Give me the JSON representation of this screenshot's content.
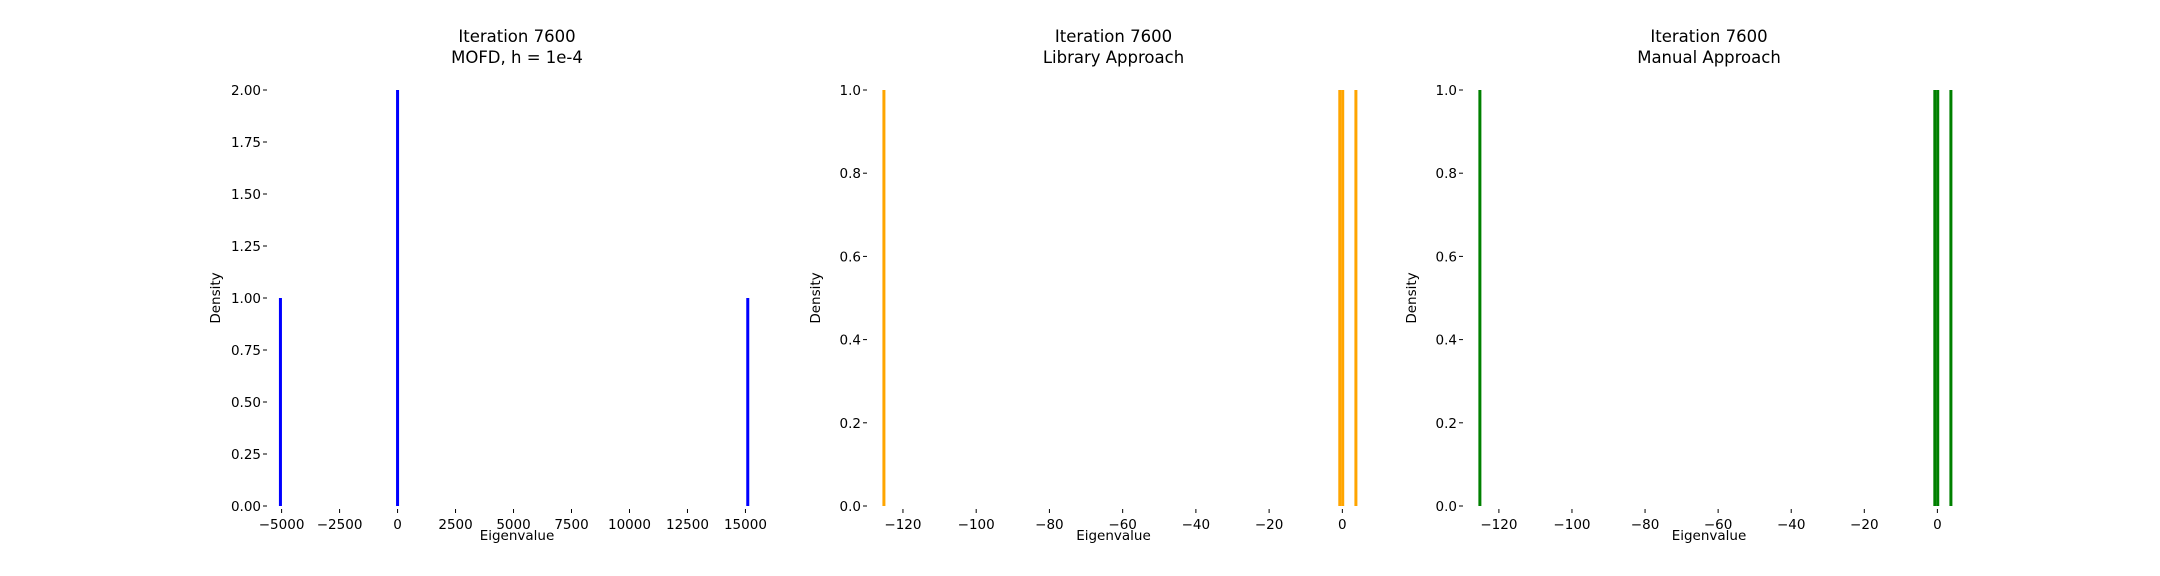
{
  "figure": {
    "background": "#ffffff"
  },
  "chart_data": [
    {
      "type": "bar",
      "title": "Iteration 7600",
      "subtitle": "MOFD, h = 1e-4",
      "xlabel": "Eigenvalue",
      "ylabel": "Density",
      "xlim": [
        -5500,
        15800
      ],
      "ylim": [
        0,
        2.0
      ],
      "xticks": [
        -5000,
        -2500,
        0,
        2500,
        5000,
        7500,
        10000,
        12500,
        15000
      ],
      "xtick_labels": [
        "−5000",
        "−2500",
        "0",
        "2500",
        "5000",
        "7500",
        "10000",
        "12500",
        "15000"
      ],
      "yticks": [
        0,
        0.25,
        0.5,
        0.75,
        1.0,
        1.25,
        1.5,
        1.75,
        2.0
      ],
      "ytick_labels": [
        "0.00",
        "0.25",
        "0.50",
        "0.75",
        "1.00",
        "1.25",
        "1.50",
        "1.75",
        "2.00"
      ],
      "color": "#0000ff",
      "grid": false,
      "bars": [
        {
          "x": -5050,
          "width": 130,
          "value": 1.0
        },
        {
          "x": 0,
          "width": 130,
          "value": 2.0
        },
        {
          "x": 15100,
          "width": 130,
          "value": 1.0
        }
      ]
    },
    {
      "type": "bar",
      "title": "Iteration 7600",
      "subtitle": "Library Approach",
      "xlabel": "Eigenvalue",
      "ylabel": "Density",
      "xlim": [
        -129,
        4
      ],
      "ylim": [
        0,
        1.0
      ],
      "xticks": [
        -120,
        -100,
        -80,
        -60,
        -40,
        -20,
        0
      ],
      "xtick_labels": [
        "−120",
        "−100",
        "−80",
        "−60",
        "−40",
        "−20",
        "0"
      ],
      "yticks": [
        0,
        0.2,
        0.4,
        0.6,
        0.8,
        1.0
      ],
      "ytick_labels": [
        "0.0",
        "0.2",
        "0.4",
        "0.6",
        "0.8",
        "1.0"
      ],
      "color": "#ffa500",
      "grid": false,
      "bars": [
        {
          "x": -125.2,
          "width": 0.8,
          "value": 1.0
        },
        {
          "x": -0.7,
          "width": 0.8,
          "value": 1.0
        },
        {
          "x": 0.1,
          "width": 0.8,
          "value": 1.0
        },
        {
          "x": 3.7,
          "width": 0.8,
          "value": 1.0
        }
      ]
    },
    {
      "type": "bar",
      "title": "Iteration 7600",
      "subtitle": "Manual Approach",
      "xlabel": "Eigenvalue",
      "ylabel": "Density",
      "xlim": [
        -129,
        4
      ],
      "ylim": [
        0,
        1.0
      ],
      "xticks": [
        -120,
        -100,
        -80,
        -60,
        -40,
        -20,
        0
      ],
      "xtick_labels": [
        "−120",
        "−100",
        "−80",
        "−60",
        "−40",
        "−20",
        "0"
      ],
      "yticks": [
        0,
        0.2,
        0.4,
        0.6,
        0.8,
        1.0
      ],
      "ytick_labels": [
        "0.0",
        "0.2",
        "0.4",
        "0.6",
        "0.8",
        "1.0"
      ],
      "color": "#008000",
      "grid": false,
      "bars": [
        {
          "x": -125.2,
          "width": 0.8,
          "value": 1.0
        },
        {
          "x": -0.7,
          "width": 0.8,
          "value": 1.0
        },
        {
          "x": 0.1,
          "width": 0.8,
          "value": 1.0
        },
        {
          "x": 3.7,
          "width": 0.8,
          "value": 1.0
        }
      ]
    }
  ]
}
